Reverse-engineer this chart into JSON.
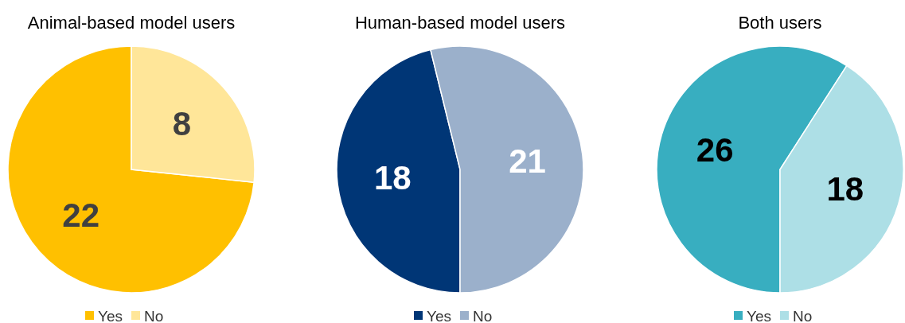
{
  "chart_data": [
    {
      "type": "pie",
      "title": "Animal-based model users",
      "categories": [
        "Yes",
        "No"
      ],
      "values": [
        22,
        8
      ],
      "colors": [
        "#ffc000",
        "#ffe699"
      ],
      "data_labels": true,
      "legend": "bottom"
    },
    {
      "type": "pie",
      "title": "Human-based model users",
      "categories": [
        "Yes",
        "No"
      ],
      "values": [
        18,
        21
      ],
      "colors": [
        "#003676",
        "#9bb0cb"
      ],
      "data_labels": true,
      "legend": "bottom"
    },
    {
      "type": "pie",
      "title": "Both users",
      "categories": [
        "Yes",
        "No"
      ],
      "values": [
        26,
        18
      ],
      "colors": [
        "#38aec0",
        "#addfe6"
      ],
      "data_labels": true,
      "legend": "bottom"
    }
  ]
}
